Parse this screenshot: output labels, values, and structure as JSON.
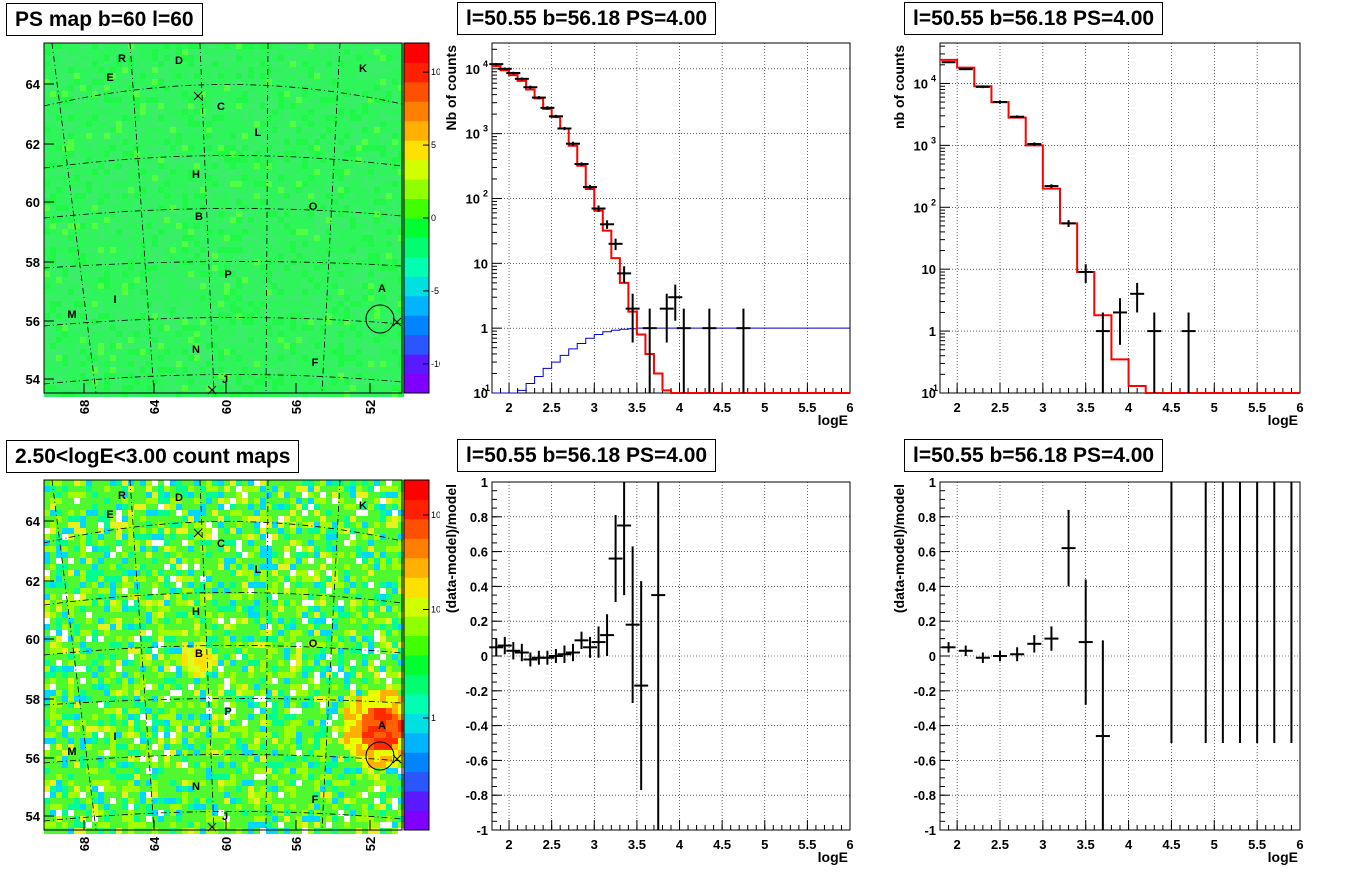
{
  "colors": {
    "model": "#ff0000",
    "ps": "#0000cc",
    "data": "#000000",
    "grid": "#000000"
  },
  "panels": {
    "tl": {
      "title": "PS map b=60 l=60"
    },
    "bl": {
      "title": "2.50<logE<3.00 count maps"
    },
    "tm": {
      "title": "l=50.55 b=56.18 PS=4.00"
    },
    "tr": {
      "title": "l=50.55 b=56.18 PS=4.00"
    },
    "bm": {
      "title": "l=50.55 b=56.18 PS=4.00"
    },
    "br": {
      "title": "l=50.55 b=56.18 PS=4.00"
    }
  },
  "chart_data": [
    {
      "id": "ps_map",
      "type": "heatmap",
      "title": "PS map b=60 l=60",
      "x_ticks": [
        "68",
        "64",
        "60",
        "56",
        "52"
      ],
      "y_ticks": [
        "54",
        "56",
        "58",
        "60",
        "62",
        "64"
      ],
      "colorbar_ticks": [
        "10",
        "5",
        "0",
        "-5",
        "-10"
      ],
      "colorbar_range": [
        -12,
        12
      ],
      "source_labels": [
        "R",
        "D",
        "K",
        "E",
        "C",
        "L",
        "H",
        "O",
        "B",
        "P",
        "A",
        "I",
        "M",
        "N",
        "F",
        "J"
      ]
    },
    {
      "id": "count_map",
      "type": "heatmap",
      "title": "2.50<logE<3.00 count maps",
      "scale": "log",
      "x_ticks": [
        "68",
        "64",
        "60",
        "56",
        "52"
      ],
      "y_ticks": [
        "54",
        "56",
        "58",
        "60",
        "62",
        "64"
      ],
      "colorbar_ticks": [
        "10^2",
        "10",
        "1"
      ],
      "source_labels": [
        "R",
        "D",
        "K",
        "E",
        "C",
        "L",
        "H",
        "O",
        "B",
        "P",
        "A",
        "I",
        "M",
        "N",
        "F",
        "J"
      ]
    },
    {
      "id": "spec1",
      "type": "line",
      "title": "l=50.55 b=56.18 PS=4.00",
      "xlabel": "logE",
      "ylabel": "Nb of counts",
      "xlim": [
        1.8,
        6
      ],
      "ylim": [
        0.1,
        25000
      ],
      "yscale": "log",
      "grid": true,
      "x_ticks": [
        2,
        2.5,
        3,
        3.5,
        4,
        4.5,
        5,
        5.5,
        6
      ],
      "series": [
        {
          "role": "model",
          "edges": [
            1.8,
            1.9,
            2.0,
            2.1,
            2.2,
            2.3,
            2.4,
            2.5,
            2.6,
            2.7,
            2.8,
            2.9,
            3.0,
            3.1,
            3.2,
            3.3,
            3.4,
            3.5,
            3.6,
            3.7,
            3.8,
            3.9,
            4.0,
            4.1,
            6.0
          ],
          "values": [
            11000,
            9500,
            8000,
            6500,
            4800,
            3500,
            2400,
            1800,
            1200,
            650,
            320,
            140,
            65,
            32,
            12,
            5,
            1.8,
            0.8,
            0.4,
            0.2,
            0.11,
            0.1,
            0.1,
            0.1
          ]
        },
        {
          "role": "point_source",
          "edges": [
            1.8,
            2.0,
            2.1,
            2.2,
            2.3,
            2.4,
            2.5,
            2.6,
            2.7,
            2.8,
            2.9,
            3.0,
            3.1,
            3.2,
            3.3,
            3.4,
            3.5,
            6.0
          ],
          "values": [
            0.1,
            0.1,
            0.11,
            0.14,
            0.18,
            0.24,
            0.3,
            0.38,
            0.48,
            0.58,
            0.7,
            0.8,
            0.88,
            0.93,
            0.96,
            0.98,
            1.0
          ]
        },
        {
          "role": "data",
          "points": [
            {
              "x": 1.85,
              "y": 11800,
              "lo": 11300,
              "hi": 12300
            },
            {
              "x": 1.95,
              "y": 10000,
              "lo": 9550,
              "hi": 10450
            },
            {
              "x": 2.05,
              "y": 8600,
              "lo": 8200,
              "hi": 9000
            },
            {
              "x": 2.15,
              "y": 7000,
              "lo": 6650,
              "hi": 7350
            },
            {
              "x": 2.25,
              "y": 5200,
              "lo": 4900,
              "hi": 5500
            },
            {
              "x": 2.35,
              "y": 3600,
              "lo": 3400,
              "hi": 3800
            },
            {
              "x": 2.45,
              "y": 2500,
              "lo": 2350,
              "hi": 2650
            },
            {
              "x": 2.55,
              "y": 1850,
              "lo": 1750,
              "hi": 1950
            },
            {
              "x": 2.65,
              "y": 1200,
              "lo": 1130,
              "hi": 1270
            },
            {
              "x": 2.75,
              "y": 700,
              "lo": 650,
              "hi": 750
            },
            {
              "x": 2.85,
              "y": 340,
              "lo": 320,
              "hi": 360
            },
            {
              "x": 2.95,
              "y": 150,
              "lo": 138,
              "hi": 162
            },
            {
              "x": 3.05,
              "y": 70,
              "lo": 62,
              "hi": 78
            },
            {
              "x": 3.15,
              "y": 40,
              "lo": 34,
              "hi": 46
            },
            {
              "x": 3.25,
              "y": 20,
              "lo": 16,
              "hi": 24
            },
            {
              "x": 3.35,
              "y": 7,
              "lo": 5,
              "hi": 9
            },
            {
              "x": 3.45,
              "y": 2,
              "lo": 0.6,
              "hi": 3.4
            },
            {
              "x": 3.65,
              "y": 1,
              "lo": 0.1,
              "hi": 2
            },
            {
              "x": 3.85,
              "y": 2,
              "lo": 0.6,
              "hi": 3.4
            },
            {
              "x": 3.95,
              "y": 3,
              "lo": 1.3,
              "hi": 4.7
            },
            {
              "x": 4.05,
              "y": 1,
              "lo": 0.1,
              "hi": 2
            },
            {
              "x": 4.35,
              "y": 1,
              "lo": 0.1,
              "hi": 2
            },
            {
              "x": 4.75,
              "y": 1,
              "lo": 0.1,
              "hi": 2
            }
          ]
        }
      ]
    },
    {
      "id": "spec2",
      "type": "line",
      "title": "l=50.55 b=56.18 PS=4.00",
      "xlabel": "logE",
      "ylabel": "nb of counts",
      "xlim": [
        1.8,
        6
      ],
      "ylim": [
        0.1,
        45000
      ],
      "yscale": "log",
      "grid": true,
      "x_ticks": [
        2,
        2.5,
        3,
        3.5,
        4,
        4.5,
        5,
        5.5,
        6
      ],
      "series": [
        {
          "role": "model",
          "edges": [
            1.8,
            2.0,
            2.2,
            2.4,
            2.6,
            2.8,
            3.0,
            3.2,
            3.4,
            3.6,
            3.8,
            4.0,
            4.2,
            6.0
          ],
          "values": [
            24000,
            18000,
            9000,
            5000,
            2800,
            1000,
            200,
            55,
            9,
            1.8,
            0.35,
            0.13,
            0.1
          ]
        },
        {
          "role": "data",
          "points": [
            {
              "x": 1.9,
              "y": 22000,
              "lo": 21300,
              "hi": 22700
            },
            {
              "x": 2.1,
              "y": 17000,
              "lo": 16400,
              "hi": 17600
            },
            {
              "x": 2.3,
              "y": 8800,
              "lo": 8400,
              "hi": 9200
            },
            {
              "x": 2.5,
              "y": 5000,
              "lo": 4700,
              "hi": 5300
            },
            {
              "x": 2.7,
              "y": 2900,
              "lo": 2750,
              "hi": 3050
            },
            {
              "x": 2.9,
              "y": 1050,
              "lo": 985,
              "hi": 1115
            },
            {
              "x": 3.1,
              "y": 220,
              "lo": 205,
              "hi": 235
            },
            {
              "x": 3.3,
              "y": 55,
              "lo": 48,
              "hi": 62
            },
            {
              "x": 3.5,
              "y": 9,
              "lo": 6,
              "hi": 12
            },
            {
              "x": 3.7,
              "y": 1,
              "lo": 0.1,
              "hi": 2
            },
            {
              "x": 3.9,
              "y": 2,
              "lo": 0.6,
              "hi": 3.4
            },
            {
              "x": 4.1,
              "y": 4,
              "lo": 2,
              "hi": 6
            },
            {
              "x": 4.3,
              "y": 1,
              "lo": 0.1,
              "hi": 2
            },
            {
              "x": 4.7,
              "y": 1,
              "lo": 0.1,
              "hi": 2
            }
          ]
        }
      ]
    },
    {
      "id": "resid1",
      "type": "scatter",
      "title": "l=50.55 b=56.18 PS=4.00",
      "xlabel": "logE",
      "ylabel": "(data-model)/model",
      "xlim": [
        1.8,
        6
      ],
      "ylim": [
        -1,
        1
      ],
      "grid": true,
      "x_ticks": [
        2,
        2.5,
        3,
        3.5,
        4,
        4.5,
        5,
        5.5,
        6
      ],
      "y_ticks": [
        -1,
        -0.8,
        -0.6,
        -0.4,
        -0.2,
        0,
        0.2,
        0.4,
        0.6,
        0.8,
        1
      ],
      "points": [
        {
          "x": 1.85,
          "y": 0.05,
          "err": 0.05
        },
        {
          "x": 1.95,
          "y": 0.06,
          "err": 0.05
        },
        {
          "x": 2.05,
          "y": 0.03,
          "err": 0.05
        },
        {
          "x": 2.15,
          "y": 0.02,
          "err": 0.05
        },
        {
          "x": 2.25,
          "y": -0.02,
          "err": 0.04
        },
        {
          "x": 2.35,
          "y": -0.01,
          "err": 0.04
        },
        {
          "x": 2.45,
          "y": -0.01,
          "err": 0.04
        },
        {
          "x": 2.55,
          "y": 0.0,
          "err": 0.04
        },
        {
          "x": 2.65,
          "y": 0.01,
          "err": 0.05
        },
        {
          "x": 2.75,
          "y": 0.02,
          "err": 0.05
        },
        {
          "x": 2.85,
          "y": 0.09,
          "err": 0.05
        },
        {
          "x": 2.95,
          "y": 0.05,
          "err": 0.06
        },
        {
          "x": 3.05,
          "y": 0.08,
          "err": 0.09
        },
        {
          "x": 3.15,
          "y": 0.12,
          "err": 0.12
        },
        {
          "x": 3.25,
          "y": 0.56,
          "err": 0.25
        },
        {
          "x": 3.35,
          "y": 0.75,
          "err": 0.4
        },
        {
          "x": 3.45,
          "y": 0.18,
          "err": 0.45
        },
        {
          "x": 3.55,
          "y": -0.17,
          "err": 0.6
        },
        {
          "x": 3.75,
          "y": 0.35,
          "err": 1.5
        }
      ]
    },
    {
      "id": "resid2",
      "type": "scatter",
      "title": "l=50.55 b=56.18 PS=4.00",
      "xlabel": "logE",
      "ylabel": "(data-model)/model",
      "xlim": [
        1.8,
        6
      ],
      "ylim": [
        -1,
        1
      ],
      "grid": true,
      "x_ticks": [
        2,
        2.5,
        3,
        3.5,
        4,
        4.5,
        5,
        5.5,
        6
      ],
      "y_ticks": [
        -1,
        -0.8,
        -0.6,
        -0.4,
        -0.2,
        0,
        0.2,
        0.4,
        0.6,
        0.8,
        1
      ],
      "points": [
        {
          "x": 1.9,
          "y": 0.05,
          "err": 0.03
        },
        {
          "x": 2.1,
          "y": 0.03,
          "err": 0.03
        },
        {
          "x": 2.3,
          "y": -0.01,
          "err": 0.03
        },
        {
          "x": 2.5,
          "y": 0.0,
          "err": 0.03
        },
        {
          "x": 2.7,
          "y": 0.01,
          "err": 0.04
        },
        {
          "x": 2.9,
          "y": 0.07,
          "err": 0.05
        },
        {
          "x": 3.1,
          "y": 0.1,
          "err": 0.07
        },
        {
          "x": 3.3,
          "y": 0.62,
          "err": 0.22
        },
        {
          "x": 3.5,
          "y": 0.08,
          "err": 0.36
        },
        {
          "x": 3.7,
          "y": -0.46,
          "err": 0.55
        },
        {
          "x": 4.5,
          "y": 1.0,
          "err": 1.5
        },
        {
          "x": 4.9,
          "y": 1.0,
          "err": 1.5
        },
        {
          "x": 5.1,
          "y": 1.0,
          "err": 1.5
        },
        {
          "x": 5.3,
          "y": 1.0,
          "err": 1.5
        },
        {
          "x": 5.5,
          "y": 1.0,
          "err": 1.5
        },
        {
          "x": 5.7,
          "y": 1.0,
          "err": 1.5
        },
        {
          "x": 5.9,
          "y": 1.0,
          "err": 1.5
        }
      ]
    }
  ]
}
